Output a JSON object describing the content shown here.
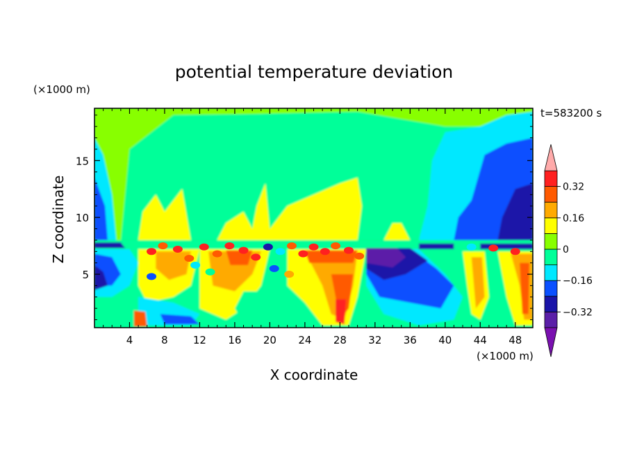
{
  "chart_data": {
    "type": "heatmap",
    "title": "potential temperature deviation",
    "time_label": "t=583200 s",
    "xlabel": "X coordinate",
    "ylabel": "Z coordinate",
    "x_unit": "(×1000 m)",
    "y_unit": "(×1000 m)",
    "xlim": [
      0,
      50
    ],
    "ylim": [
      0.3,
      19.6
    ],
    "x_ticks": [
      4,
      8,
      12,
      16,
      20,
      24,
      28,
      32,
      36,
      40,
      44,
      48
    ],
    "y_ticks": [
      5,
      10,
      15
    ],
    "colorbar": {
      "levels": [
        -0.4,
        -0.32,
        -0.24,
        -0.16,
        -0.08,
        0,
        0.08,
        0.16,
        0.24,
        0.32,
        0.4
      ],
      "tick_labels": [
        "0.32",
        "0.16",
        "0",
        "−0.16",
        "−0.32"
      ],
      "tick_values": [
        0.32,
        0.16,
        0,
        -0.16,
        -0.32
      ],
      "colors": [
        "#7a10b0",
        "#5b1fa8",
        "#1a14a8",
        "#0a50ff",
        "#00e8ff",
        "#00ff99",
        "#88ff00",
        "#ffff00",
        "#ffaa00",
        "#ff5a00",
        "#ff2020",
        "#ffaaaa"
      ],
      "extend": "both"
    },
    "regions": [
      {
        "level": 0.04,
        "poly": [
          [
            0,
            19.6
          ],
          [
            50,
            19.6
          ],
          [
            50,
            8
          ],
          [
            0,
            8
          ]
        ]
      },
      {
        "level": -0.04,
        "poly": [
          [
            0,
            8
          ],
          [
            3,
            8
          ],
          [
            4,
            16
          ],
          [
            9,
            19
          ],
          [
            18,
            19.1
          ],
          [
            30,
            19.3
          ],
          [
            40,
            18
          ],
          [
            45,
            18
          ],
          [
            50,
            19.2
          ],
          [
            50,
            8
          ]
        ]
      },
      {
        "level": -0.04,
        "poly": [
          [
            0,
            0.3
          ],
          [
            50,
            0.3
          ],
          [
            50,
            8
          ],
          [
            0,
            8
          ]
        ]
      },
      {
        "level": -0.12,
        "poly": [
          [
            0,
            17
          ],
          [
            1,
            15.5
          ],
          [
            2,
            12
          ],
          [
            2.5,
            8
          ],
          [
            0,
            8
          ]
        ]
      },
      {
        "level": -0.12,
        "poly": [
          [
            37,
            8
          ],
          [
            38,
            11
          ],
          [
            38.5,
            15
          ],
          [
            40,
            17.5
          ],
          [
            44,
            18
          ],
          [
            47,
            19
          ],
          [
            50,
            19.3
          ],
          [
            50,
            8
          ]
        ]
      },
      {
        "level": -0.2,
        "poly": [
          [
            0,
            13.5
          ],
          [
            1.2,
            11
          ],
          [
            1.5,
            8
          ],
          [
            0,
            8
          ]
        ]
      },
      {
        "level": -0.2,
        "poly": [
          [
            41,
            8
          ],
          [
            41.5,
            10
          ],
          [
            43,
            11.5
          ],
          [
            44.5,
            15.5
          ],
          [
            47,
            16.5
          ],
          [
            50,
            17
          ],
          [
            50,
            8
          ]
        ]
      },
      {
        "level": -0.28,
        "poly": [
          [
            46,
            8
          ],
          [
            46.5,
            10
          ],
          [
            48,
            12.5
          ],
          [
            50,
            13
          ],
          [
            50,
            8
          ]
        ]
      },
      {
        "level": 0.12,
        "poly": [
          [
            5,
            8
          ],
          [
            5.5,
            10.5
          ],
          [
            7,
            12
          ],
          [
            8,
            10.5
          ],
          [
            9,
            11.5
          ],
          [
            10,
            12.5
          ],
          [
            11,
            8
          ]
        ]
      },
      {
        "level": 0.12,
        "poly": [
          [
            14,
            8
          ],
          [
            15,
            9.5
          ],
          [
            17,
            10.5
          ],
          [
            18,
            9
          ],
          [
            18.5,
            11
          ],
          [
            19.5,
            13
          ],
          [
            20,
            9
          ],
          [
            21,
            10
          ],
          [
            22,
            11
          ],
          [
            25,
            12
          ],
          [
            28,
            13
          ],
          [
            30,
            13.5
          ],
          [
            30.5,
            11
          ],
          [
            30,
            8
          ]
        ]
      },
      {
        "level": 0.12,
        "poly": [
          [
            33,
            8
          ],
          [
            34,
            9.5
          ],
          [
            35,
            9.5
          ],
          [
            36,
            8
          ]
        ]
      },
      {
        "level": -0.28,
        "poly": [
          [
            0,
            7.8
          ],
          [
            3,
            7.8
          ],
          [
            3.5,
            7.3
          ],
          [
            0,
            7.3
          ]
        ]
      },
      {
        "level": -0.28,
        "poly": [
          [
            37,
            7.7
          ],
          [
            41,
            7.7
          ],
          [
            41,
            7.2
          ],
          [
            37,
            7.2
          ]
        ]
      },
      {
        "level": -0.28,
        "poly": [
          [
            44,
            7.7
          ],
          [
            50,
            7.7
          ],
          [
            50,
            7.2
          ],
          [
            44,
            7.2
          ]
        ]
      },
      {
        "level": -0.12,
        "poly": [
          [
            0,
            7.2
          ],
          [
            4,
            7.2
          ],
          [
            5,
            6
          ],
          [
            4,
            4
          ],
          [
            2,
            3
          ],
          [
            0,
            3
          ]
        ]
      },
      {
        "level": -0.2,
        "poly": [
          [
            0,
            6.8
          ],
          [
            2,
            6.5
          ],
          [
            3,
            5
          ],
          [
            2,
            4
          ],
          [
            0,
            4
          ]
        ]
      },
      {
        "level": -0.28,
        "poly": [
          [
            0,
            5.8
          ],
          [
            1,
            5.2
          ],
          [
            1.5,
            4
          ],
          [
            0,
            3.6
          ]
        ]
      },
      {
        "level": 0.12,
        "poly": [
          [
            5,
            7.2
          ],
          [
            12,
            7.2
          ],
          [
            11,
            4
          ],
          [
            9,
            3
          ],
          [
            6,
            2.5
          ],
          [
            5,
            4
          ]
        ]
      },
      {
        "level": 0.2,
        "poly": [
          [
            7,
            7
          ],
          [
            11,
            7
          ],
          [
            10.5,
            5
          ],
          [
            8.5,
            4.5
          ],
          [
            7,
            5.5
          ]
        ]
      },
      {
        "level": -0.12,
        "poly": [
          [
            5,
            3
          ],
          [
            9,
            2.5
          ],
          [
            12,
            1.5
          ],
          [
            11,
            0.5
          ],
          [
            6,
            0.5
          ],
          [
            5,
            1.5
          ]
        ]
      },
      {
        "level": -0.2,
        "poly": [
          [
            7.5,
            1.5
          ],
          [
            11,
            1.3
          ],
          [
            12,
            0.6
          ],
          [
            8,
            0.6
          ]
        ]
      },
      {
        "level": 0.28,
        "poly": [
          [
            4.5,
            1.8
          ],
          [
            5.8,
            1.7
          ],
          [
            6,
            0.4
          ],
          [
            4.5,
            0.4
          ]
        ]
      },
      {
        "level": 0.12,
        "poly": [
          [
            12,
            7.2
          ],
          [
            20,
            7.2
          ],
          [
            19,
            4
          ],
          [
            17,
            2
          ],
          [
            15,
            1
          ],
          [
            12,
            2
          ]
        ]
      },
      {
        "level": 0.2,
        "poly": [
          [
            13,
            7
          ],
          [
            19,
            7
          ],
          [
            18,
            5
          ],
          [
            16,
            3.5
          ],
          [
            13.5,
            4
          ]
        ]
      },
      {
        "level": 0.28,
        "poly": [
          [
            15,
            7.1
          ],
          [
            18,
            7.1
          ],
          [
            17.5,
            5.8
          ],
          [
            15.5,
            5.8
          ]
        ]
      },
      {
        "level": -0.04,
        "poly": [
          [
            17,
            3.5
          ],
          [
            21,
            3.5
          ],
          [
            24,
            2
          ],
          [
            26,
            0.8
          ],
          [
            17,
            0.6
          ],
          [
            16,
            2
          ]
        ]
      },
      {
        "level": 0.12,
        "poly": [
          [
            22,
            7.2
          ],
          [
            31,
            7.2
          ],
          [
            30,
            3
          ],
          [
            29,
            0.5
          ],
          [
            26,
            0.5
          ],
          [
            24,
            2.5
          ],
          [
            22,
            4
          ]
        ]
      },
      {
        "level": 0.2,
        "poly": [
          [
            24,
            7
          ],
          [
            30,
            7
          ],
          [
            29.5,
            4
          ],
          [
            28.5,
            1
          ],
          [
            27,
            1.5
          ],
          [
            26,
            4
          ]
        ]
      },
      {
        "level": 0.28,
        "poly": [
          [
            27,
            5
          ],
          [
            29.5,
            5
          ],
          [
            29,
            2
          ],
          [
            28,
            1
          ]
        ]
      },
      {
        "level": 0.36,
        "poly": [
          [
            27.5,
            2.8
          ],
          [
            28.7,
            2.8
          ],
          [
            28.5,
            0.6
          ],
          [
            27.5,
            0.8
          ]
        ]
      },
      {
        "level": 0.28,
        "poly": [
          [
            24,
            7.1
          ],
          [
            30,
            7.1
          ],
          [
            29.5,
            6
          ],
          [
            24.5,
            6
          ]
        ]
      },
      {
        "level": -0.12,
        "poly": [
          [
            31,
            7.2
          ],
          [
            37,
            7.2
          ],
          [
            40,
            5
          ],
          [
            42,
            3
          ],
          [
            41,
            1
          ],
          [
            37,
            0.5
          ],
          [
            33,
            1.5
          ],
          [
            31,
            4
          ]
        ]
      },
      {
        "level": -0.2,
        "poly": [
          [
            31,
            7.2
          ],
          [
            36,
            7.2
          ],
          [
            39,
            5.5
          ],
          [
            41,
            4
          ],
          [
            39.5,
            2
          ],
          [
            36,
            2.5
          ],
          [
            32.5,
            3
          ],
          [
            31,
            5
          ]
        ]
      },
      {
        "level": -0.28,
        "poly": [
          [
            31,
            7.3
          ],
          [
            36,
            7.3
          ],
          [
            38,
            6.2
          ],
          [
            35.5,
            5
          ],
          [
            33,
            4.5
          ],
          [
            31,
            5.5
          ]
        ]
      },
      {
        "level": -0.36,
        "poly": [
          [
            31,
            7.3
          ],
          [
            34.5,
            7.3
          ],
          [
            35.5,
            6.5
          ],
          [
            34,
            5.6
          ],
          [
            31,
            6
          ]
        ]
      },
      {
        "level": 0.12,
        "poly": [
          [
            42,
            7
          ],
          [
            44.5,
            7
          ],
          [
            45,
            3
          ],
          [
            44,
            1
          ],
          [
            43,
            1.5
          ],
          [
            42.5,
            4
          ]
        ]
      },
      {
        "level": 0.2,
        "poly": [
          [
            43,
            6.5
          ],
          [
            44.2,
            6.5
          ],
          [
            44.5,
            3
          ],
          [
            43.5,
            2
          ]
        ]
      },
      {
        "level": 0.12,
        "poly": [
          [
            46,
            7
          ],
          [
            50,
            7
          ],
          [
            50,
            0.5
          ],
          [
            48,
            0.5
          ],
          [
            47,
            3
          ]
        ]
      },
      {
        "level": 0.2,
        "poly": [
          [
            47.5,
            6.8
          ],
          [
            50,
            6.8
          ],
          [
            50,
            1
          ],
          [
            49,
            1
          ],
          [
            48.5,
            4
          ]
        ]
      },
      {
        "level": 0.28,
        "poly": [
          [
            48.5,
            6
          ],
          [
            49.6,
            6
          ],
          [
            49.5,
            1.5
          ],
          [
            48.8,
            1.5
          ]
        ]
      }
    ],
    "cells": [
      {
        "x": 6.5,
        "z": 7.0,
        "level": 0.36
      },
      {
        "x": 7.8,
        "z": 7.5,
        "level": 0.28
      },
      {
        "x": 9.5,
        "z": 7.2,
        "level": 0.36
      },
      {
        "x": 10.8,
        "z": 6.4,
        "level": 0.28
      },
      {
        "x": 12.5,
        "z": 7.4,
        "level": 0.36
      },
      {
        "x": 14.0,
        "z": 6.8,
        "level": 0.28
      },
      {
        "x": 15.4,
        "z": 7.5,
        "level": 0.36
      },
      {
        "x": 17.0,
        "z": 7.1,
        "level": 0.36
      },
      {
        "x": 18.4,
        "z": 6.5,
        "level": 0.36
      },
      {
        "x": 19.8,
        "z": 7.4,
        "level": -0.28
      },
      {
        "x": 21.2,
        "z": 7.0,
        "level": -0.12
      },
      {
        "x": 22.5,
        "z": 7.5,
        "level": 0.28
      },
      {
        "x": 23.8,
        "z": 6.8,
        "level": 0.36
      },
      {
        "x": 25.0,
        "z": 7.4,
        "level": 0.36
      },
      {
        "x": 26.3,
        "z": 7.0,
        "level": 0.36
      },
      {
        "x": 27.5,
        "z": 7.5,
        "level": 0.28
      },
      {
        "x": 29.0,
        "z": 7.1,
        "level": 0.36
      },
      {
        "x": 30.2,
        "z": 6.6,
        "level": 0.28
      },
      {
        "x": 11.5,
        "z": 5.8,
        "level": -0.12
      },
      {
        "x": 20.5,
        "z": 5.5,
        "level": -0.2
      },
      {
        "x": 22.2,
        "z": 5.0,
        "level": 0.2
      },
      {
        "x": 13.2,
        "z": 5.2,
        "level": -0.04
      },
      {
        "x": 45.5,
        "z": 7.3,
        "level": 0.36
      },
      {
        "x": 48.0,
        "z": 7.0,
        "level": 0.36
      },
      {
        "x": 43.0,
        "z": 7.4,
        "level": -0.12
      },
      {
        "x": 6.5,
        "z": 4.8,
        "level": -0.2
      }
    ]
  }
}
